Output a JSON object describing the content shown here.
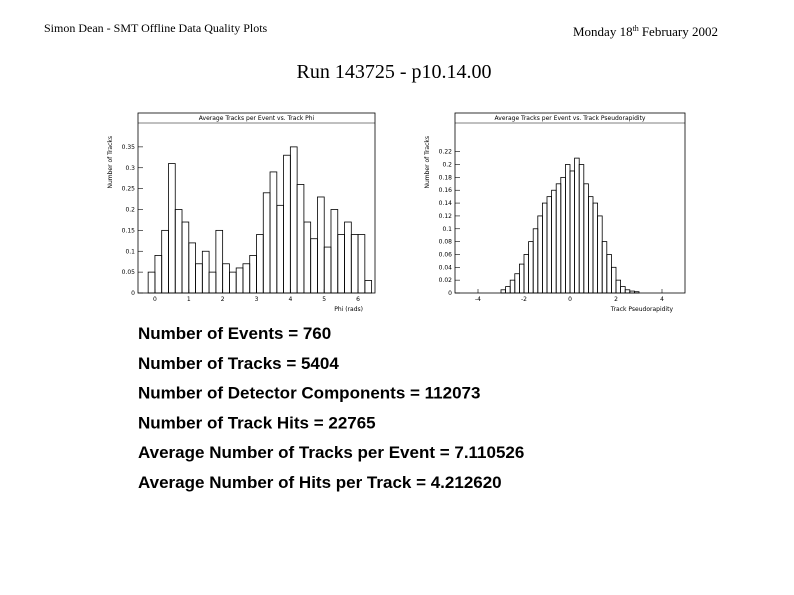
{
  "header": {
    "left": "Simon Dean - SMT Offline Data Quality Plots",
    "date": {
      "prefix": "Monday 18",
      "sup": "th",
      "suffix": "February 2002"
    },
    "title": "Run 143725 - p10.14.00"
  },
  "chart_data": [
    {
      "type": "histogram",
      "title": "Average Tracks per Event vs. Track Phi",
      "x_label": "Phi (rads)",
      "y_label": "Number of Tracks",
      "color": "#000000",
      "bins": [
        -0.2,
        0,
        0.2,
        0.4,
        0.6,
        0.8,
        1.0,
        1.2,
        1.4,
        1.6,
        1.8,
        2.0,
        2.2,
        2.4,
        2.6,
        2.8,
        3.0,
        3.2,
        3.4,
        3.6,
        3.8,
        4.0,
        4.2,
        4.4,
        4.6,
        4.8,
        5.0,
        5.2,
        5.4,
        5.6,
        5.8,
        6.0,
        6.2,
        6.4
      ],
      "values": [
        0.05,
        0.09,
        0.15,
        0.31,
        0.2,
        0.17,
        0.12,
        0.07,
        0.1,
        0.05,
        0.15,
        0.07,
        0.05,
        0.06,
        0.07,
        0.09,
        0.14,
        0.24,
        0.29,
        0.21,
        0.33,
        0.35,
        0.26,
        0.17,
        0.13,
        0.23,
        0.11,
        0.2,
        0.14,
        0.17,
        0.14,
        0.14,
        0.03
      ],
      "xlim": [
        -0.5,
        6.5
      ],
      "ylim": [
        0,
        0.4
      ],
      "xticks": [
        0,
        1,
        2,
        3,
        4,
        5,
        6
      ],
      "yticks": [
        0,
        0.05,
        0.1,
        0.15,
        0.2,
        0.25,
        0.3,
        0.35
      ]
    },
    {
      "type": "histogram",
      "title": "Average Tracks per Event vs. Track Pseudorapidity",
      "x_label": "Track Pseudorapidity",
      "y_label": "Number of Tracks",
      "color": "#000000",
      "bins": [
        -3.0,
        -2.8,
        -2.6,
        -2.4,
        -2.2,
        -2.0,
        -1.8,
        -1.6,
        -1.4,
        -1.2,
        -1.0,
        -0.8,
        -0.6,
        -0.4,
        -0.2,
        0,
        0.2,
        0.4,
        0.6,
        0.8,
        1.0,
        1.2,
        1.4,
        1.6,
        1.8,
        2.0,
        2.2,
        2.4,
        2.6,
        2.8,
        3.0
      ],
      "values": [
        0.005,
        0.01,
        0.02,
        0.03,
        0.045,
        0.06,
        0.08,
        0.1,
        0.12,
        0.14,
        0.15,
        0.16,
        0.17,
        0.18,
        0.2,
        0.19,
        0.21,
        0.2,
        0.17,
        0.15,
        0.14,
        0.12,
        0.08,
        0.06,
        0.04,
        0.02,
        0.01,
        0.005,
        0.003,
        0.002
      ],
      "xlim": [
        -5,
        5
      ],
      "ylim": [
        0,
        0.26
      ],
      "xticks": [
        -4,
        -2,
        0,
        2,
        4
      ],
      "yticks": [
        0,
        0.02,
        0.04,
        0.06,
        0.08,
        0.1,
        0.12,
        0.14,
        0.16,
        0.18,
        0.2,
        0.22
      ]
    }
  ],
  "stats": [
    "Number of Events = 760",
    "Number of Tracks = 5404",
    "Number of Detector Components = 112073",
    "Number of Track Hits = 22765",
    "Average Number of Tracks per Event = 7.110526",
    "Average Number of Hits per Track = 4.212620"
  ]
}
